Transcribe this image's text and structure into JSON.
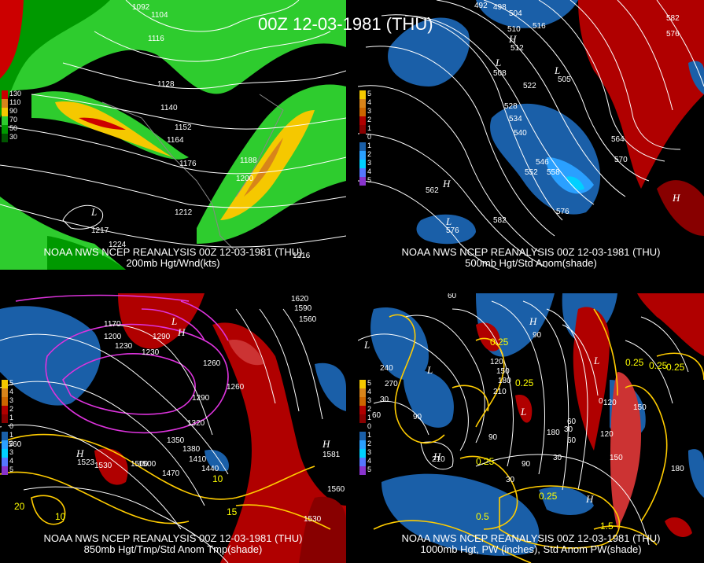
{
  "title": "00Z 12-03-1981 (THU)",
  "panels": [
    {
      "id": "p1",
      "caption_line1": "NOAA NWS NCEP REANALYSIS 00Z 12-03-1981 (THU)",
      "caption_line2": "200mb Hgt/Wnd(kts)",
      "legend": [
        "130",
        "110",
        "90",
        "70",
        "50",
        "30"
      ],
      "legend_colors": [
        "#cc0000",
        "#d8841a",
        "#f5c800",
        "#2ecc2e",
        "#009900",
        "#005500"
      ],
      "contour_labels": [
        "1092",
        "1104",
        "1116",
        "1128",
        "1140",
        "1152",
        "1164",
        "1176",
        "1188",
        "1200",
        "1212",
        "1224",
        "1217",
        "1216"
      ],
      "low_label": "L"
    },
    {
      "id": "p2",
      "caption_line1": "NOAA NWS NCEP REANALYSIS 00Z 12-03-1981 (THU)",
      "caption_line2": "500mb Hgt/Std Anom(shade)",
      "legend": [
        "5",
        "4",
        "3",
        "2",
        "1",
        "0",
        "1",
        "2",
        "3",
        "4",
        "5"
      ],
      "legend_colors": [
        "#f5c800",
        "#d8841a",
        "#cc6600",
        "#b00000",
        "#880000",
        "#000000",
        "#1a5fa8",
        "#2aa0ff",
        "#00d0ff",
        "#5577ff",
        "#8833cc"
      ],
      "contour_labels": [
        "492",
        "498",
        "504",
        "510",
        "516",
        "522",
        "528",
        "534",
        "540",
        "546",
        "552",
        "558",
        "564",
        "570",
        "576",
        "582",
        "582",
        "576",
        "505",
        "512",
        "508",
        "562",
        "576"
      ],
      "lows_highs": [
        "L",
        "L",
        "H",
        "H",
        "H",
        "L"
      ]
    },
    {
      "id": "p3",
      "caption_line1": "NOAA NWS NCEP REANALYSIS 00Z 12-03-1981 (THU)",
      "caption_line2": "850mb Hgt/Tmp/Std Anom Tmp(shade)",
      "legend": [
        "5",
        "4",
        "3",
        "2",
        "1",
        "0",
        "1",
        "2",
        "3",
        "4",
        "5"
      ],
      "legend_colors": [
        "#f5c800",
        "#d8841a",
        "#cc6600",
        "#b00000",
        "#880000",
        "#000000",
        "#1a5fa8",
        "#2aa0ff",
        "#00d0ff",
        "#5577ff",
        "#8833cc"
      ],
      "contour_labels": [
        "1170",
        "1200",
        "1230",
        "1260",
        "1290",
        "1320",
        "1350",
        "1380",
        "1410",
        "1440",
        "1470",
        "1500",
        "1530",
        "1560",
        "1620",
        "1590",
        "1560",
        "1560",
        "1530",
        "1500",
        "1290",
        "1230",
        "1260",
        "1581",
        "1523"
      ],
      "temp_labels": [
        "10",
        "15",
        "20",
        "10"
      ],
      "lows_highs": [
        "L",
        "H",
        "H",
        "H"
      ]
    },
    {
      "id": "p4",
      "caption_line1": "NOAA NWS NCEP REANALYSIS 00Z 12-03-1981 (THU)",
      "caption_line2": "1000mb Hgt, PW (inches), Std Anom PW(shade)",
      "legend": [
        "5",
        "4",
        "3",
        "2",
        "1",
        "0",
        "1",
        "2",
        "3",
        "4",
        "5"
      ],
      "legend_colors": [
        "#f5c800",
        "#d8841a",
        "#cc6600",
        "#b00000",
        "#880000",
        "#000000",
        "#1a5fa8",
        "#2aa0ff",
        "#00d0ff",
        "#5577ff",
        "#8833cc"
      ],
      "contour_labels": [
        "60",
        "90",
        "120",
        "150",
        "180",
        "210",
        "240",
        "270",
        "30",
        "60",
        "90",
        "120",
        "150",
        "180",
        "30",
        "60",
        "30",
        "60",
        "90",
        "120",
        "150",
        "0",
        "30",
        "90",
        "180",
        "210"
      ],
      "pw_labels": [
        "0.25",
        "0.25",
        "0.25",
        "0.25",
        "0.25",
        "0.5",
        "1.5",
        "0.25",
        "0.25"
      ],
      "lows_highs": [
        "L",
        "H",
        "L",
        "L",
        "H",
        "H",
        "L"
      ]
    }
  ]
}
